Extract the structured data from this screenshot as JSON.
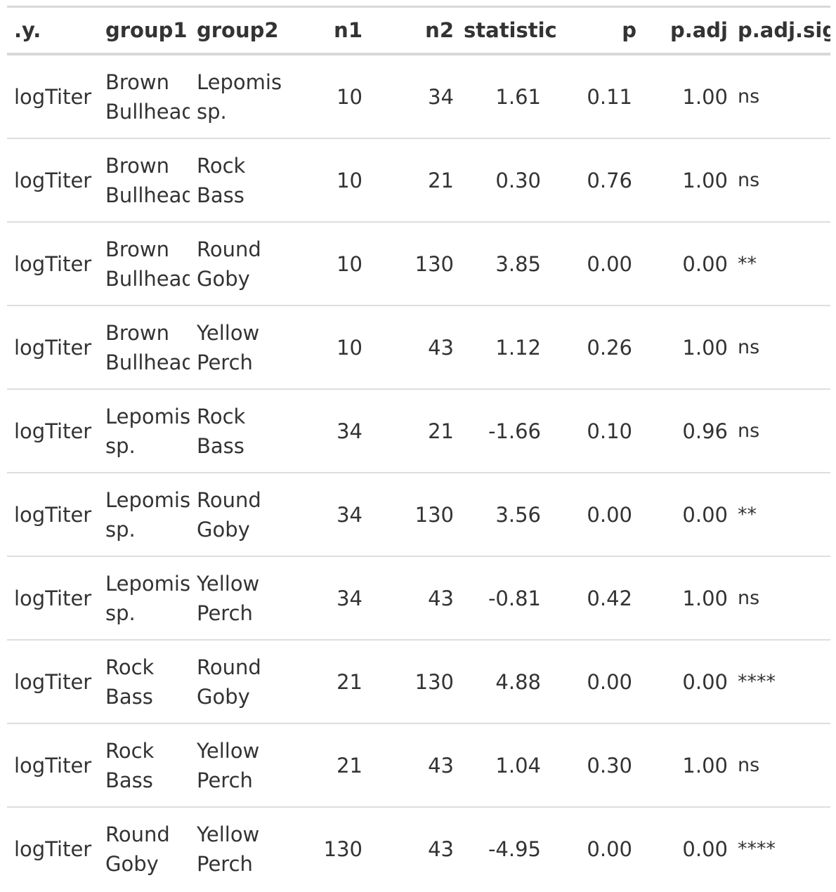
{
  "table": {
    "columns": [
      ".y.",
      "group1",
      "group2",
      "n1",
      "n2",
      "statistic",
      "p",
      "p.adj",
      "p.adj.signif"
    ],
    "rows": [
      {
        "y": "logTiter",
        "group1": "Brown Bullhead",
        "group2": "Lepomis sp.",
        "n1": "10",
        "n2": "34",
        "statistic": "1.61",
        "p": "0.11",
        "p_adj": "1.00",
        "p_adj_signif": "ns"
      },
      {
        "y": "logTiter",
        "group1": "Brown Bullhead",
        "group2": "Rock Bass",
        "n1": "10",
        "n2": "21",
        "statistic": "0.30",
        "p": "0.76",
        "p_adj": "1.00",
        "p_adj_signif": "ns"
      },
      {
        "y": "logTiter",
        "group1": "Brown Bullhead",
        "group2": "Round Goby",
        "n1": "10",
        "n2": "130",
        "statistic": "3.85",
        "p": "0.00",
        "p_adj": "0.00",
        "p_adj_signif": "**"
      },
      {
        "y": "logTiter",
        "group1": "Brown Bullhead",
        "group2": "Yellow Perch",
        "n1": "10",
        "n2": "43",
        "statistic": "1.12",
        "p": "0.26",
        "p_adj": "1.00",
        "p_adj_signif": "ns"
      },
      {
        "y": "logTiter",
        "group1": "Lepomis sp.",
        "group2": "Rock Bass",
        "n1": "34",
        "n2": "21",
        "statistic": "-1.66",
        "p": "0.10",
        "p_adj": "0.96",
        "p_adj_signif": "ns"
      },
      {
        "y": "logTiter",
        "group1": "Lepomis sp.",
        "group2": "Round Goby",
        "n1": "34",
        "n2": "130",
        "statistic": "3.56",
        "p": "0.00",
        "p_adj": "0.00",
        "p_adj_signif": "**"
      },
      {
        "y": "logTiter",
        "group1": "Lepomis sp.",
        "group2": "Yellow Perch",
        "n1": "34",
        "n2": "43",
        "statistic": "-0.81",
        "p": "0.42",
        "p_adj": "1.00",
        "p_adj_signif": "ns"
      },
      {
        "y": "logTiter",
        "group1": "Rock Bass",
        "group2": "Round Goby",
        "n1": "21",
        "n2": "130",
        "statistic": "4.88",
        "p": "0.00",
        "p_adj": "0.00",
        "p_adj_signif": "****"
      },
      {
        "y": "logTiter",
        "group1": "Rock Bass",
        "group2": "Yellow Perch",
        "n1": "21",
        "n2": "43",
        "statistic": "1.04",
        "p": "0.30",
        "p_adj": "1.00",
        "p_adj_signif": "ns"
      },
      {
        "y": "logTiter",
        "group1": "Round Goby",
        "group2": "Yellow Perch",
        "n1": "130",
        "n2": "43",
        "statistic": "-4.95",
        "p": "0.00",
        "p_adj": "0.00",
        "p_adj_signif": "****"
      }
    ]
  },
  "colors": {
    "text": "#333333",
    "rule": "#d8d8d8",
    "row_divider": "#dedede",
    "background": "#ffffff"
  }
}
